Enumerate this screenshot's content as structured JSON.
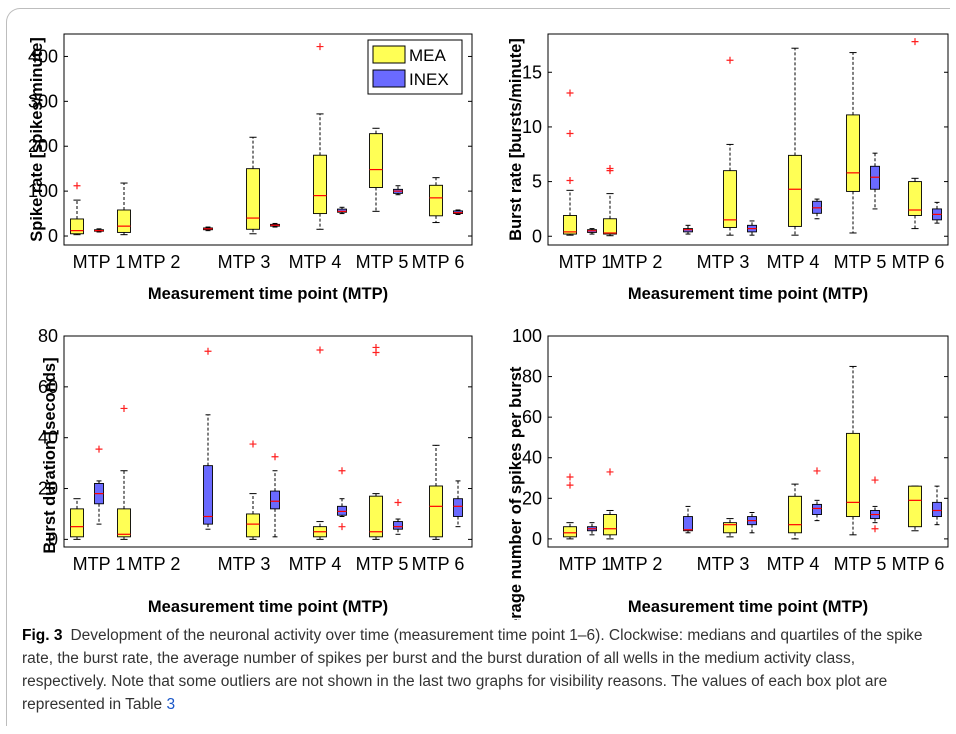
{
  "caption": {
    "label": "Fig. 3",
    "text": "Development of the neuronal activity over time (measurement time point 1–6). Clockwise: medians and quartiles of the spike rate, the burst rate, the average number of spikes per burst and the burst duration of all wells in the medium activity class, respectively. Note that some outliers are not shown in the last two graphs for visibility reasons. The values of each box plot are represented in Table",
    "table_ref": "3"
  },
  "colors": {
    "MEA": "#ffff55",
    "INEX": "#6a6aff",
    "outlier": "#ff2020",
    "median": "#ff0000"
  },
  "chart_data": [
    {
      "type": "box",
      "ylabel": "Spike rate [spikes/minute]",
      "xlabel": "Measurement time point (MTP)",
      "categories": [
        "MTP 1",
        "MTP 2",
        "MTP 3",
        "MTP 4",
        "MTP 5",
        "MTP 6"
      ],
      "tick_labels": [
        "MTP 1",
        "MTP 2",
        "MTP 3",
        "MTP 4",
        "MTP 5",
        "MTP 6"
      ],
      "ylim": [
        -20,
        450
      ],
      "yticks": [
        0,
        100,
        200,
        300,
        400
      ],
      "legend": {
        "position": "top-right",
        "entries": [
          "MEA",
          "INEX"
        ]
      },
      "series": [
        {
          "name": "MEA",
          "boxes": [
            {
              "whislo": 3,
              "q1": 5,
              "med": 12,
              "q3": 38,
              "whishi": 80,
              "fliers": [
                112
              ]
            },
            {
              "whislo": 3,
              "q1": 8,
              "med": 22,
              "q3": 58,
              "whishi": 118,
              "fliers": []
            },
            null,
            {
              "whislo": 5,
              "q1": 15,
              "med": 40,
              "q3": 150,
              "whishi": 220,
              "fliers": []
            },
            {
              "whislo": 15,
              "q1": 50,
              "med": 90,
              "q3": 180,
              "whishi": 272,
              "fliers": [
                422
              ]
            },
            {
              "whislo": 55,
              "q1": 108,
              "med": 148,
              "q3": 228,
              "whishi": 240,
              "fliers": []
            }
          ]
        },
        {
          "name": "INEX",
          "boxes": [
            {
              "whislo": 9,
              "q1": 11,
              "med": 12,
              "q3": 14,
              "whishi": 16,
              "fliers": []
            },
            null,
            {
              "whislo": 12,
              "q1": 14,
              "med": 16,
              "q3": 18,
              "whishi": 20,
              "fliers": []
            },
            {
              "whislo": 20,
              "q1": 22,
              "med": 24,
              "q3": 26,
              "whishi": 28,
              "fliers": []
            },
            {
              "whislo": 50,
              "q1": 53,
              "med": 55,
              "q3": 60,
              "whishi": 64,
              "fliers": []
            },
            {
              "whislo": 92,
              "q1": 95,
              "med": 100,
              "q3": 104,
              "whishi": 112,
              "fliers": []
            }
          ]
        }
      ],
      "extra_mea": {
        "whislo": 30,
        "q1": 45,
        "med": 85,
        "q3": 113,
        "whishi": 130,
        "fliers": []
      },
      "extra_inex": {
        "whislo": 48,
        "q1": 50,
        "med": 52,
        "q3": 56,
        "whishi": 58,
        "fliers": []
      }
    },
    {
      "type": "box",
      "ylabel": "Burst rate [bursts/minute]",
      "xlabel": "Measurement time point (MTP)",
      "ylim": [
        -0.8,
        18.5
      ],
      "yticks": [
        0,
        5,
        10,
        15
      ],
      "mea": [
        {
          "whislo": 0.1,
          "q1": 0.2,
          "med": 0.4,
          "q3": 1.9,
          "whishi": 4.2,
          "fliers": [
            5.1,
            9.4,
            13.1
          ]
        },
        {
          "whislo": 0.05,
          "q1": 0.2,
          "med": 0.3,
          "q3": 1.6,
          "whishi": 3.9,
          "fliers": [
            6.0,
            6.2
          ]
        },
        null,
        {
          "whislo": 0.1,
          "q1": 0.8,
          "med": 1.5,
          "q3": 6.0,
          "whishi": 8.4,
          "fliers": [
            16.1
          ]
        },
        {
          "whislo": 0.1,
          "q1": 0.9,
          "med": 4.3,
          "q3": 7.4,
          "whishi": 17.2,
          "fliers": []
        },
        {
          "whislo": 0.3,
          "q1": 4.1,
          "med": 5.8,
          "q3": 11.1,
          "whishi": 16.8,
          "fliers": []
        },
        {
          "whislo": 0.7,
          "q1": 1.9,
          "med": 2.4,
          "q3": 5.0,
          "whishi": 5.3,
          "fliers": [
            17.8
          ]
        }
      ],
      "inex": [
        {
          "whislo": 0.2,
          "q1": 0.35,
          "med": 0.5,
          "q3": 0.6,
          "whishi": 0.7,
          "fliers": []
        },
        null,
        {
          "whislo": 0.2,
          "q1": 0.4,
          "med": 0.6,
          "q3": 0.7,
          "whishi": 1.0,
          "fliers": []
        },
        {
          "whislo": 0.1,
          "q1": 0.4,
          "med": 0.7,
          "q3": 1.0,
          "whishi": 1.4,
          "fliers": []
        },
        {
          "whislo": 1.6,
          "q1": 2.1,
          "med": 2.6,
          "q3": 3.2,
          "whishi": 3.4,
          "fliers": []
        },
        {
          "whislo": 2.5,
          "q1": 4.3,
          "med": 5.4,
          "q3": 6.4,
          "whishi": 7.6,
          "fliers": []
        },
        {
          "whislo": 1.2,
          "q1": 1.5,
          "med": 2.0,
          "q3": 2.5,
          "whishi": 3.1,
          "fliers": []
        }
      ]
    },
    {
      "type": "box",
      "ylabel": "Burst duration [seconds]",
      "xlabel": "Measurement time point (MTP)",
      "ylim": [
        -3,
        80
      ],
      "yticks": [
        0,
        20,
        40,
        60,
        80
      ],
      "mea": [
        {
          "whislo": 0,
          "q1": 1,
          "med": 5,
          "q3": 12,
          "whishi": 16,
          "fliers": []
        },
        {
          "whislo": 0,
          "q1": 1,
          "med": 2,
          "q3": 12,
          "whishi": 27,
          "fliers": [
            51.5
          ]
        },
        null,
        {
          "whislo": 0,
          "q1": 1,
          "med": 6,
          "q3": 10,
          "whishi": 18,
          "fliers": [
            37.5
          ]
        },
        {
          "whislo": 0,
          "q1": 1,
          "med": 3,
          "q3": 5,
          "whishi": 7,
          "fliers": [
            74.5
          ]
        },
        {
          "whislo": 0,
          "q1": 1,
          "med": 3,
          "q3": 17,
          "whishi": 18,
          "fliers": [
            73.5,
            75.5
          ]
        },
        {
          "whislo": 0,
          "q1": 1,
          "med": 13,
          "q3": 21,
          "whishi": 37,
          "fliers": []
        }
      ],
      "inex": [
        {
          "whislo": 6,
          "q1": 14,
          "med": 18,
          "q3": 22,
          "whishi": 23,
          "fliers": [
            35.5
          ]
        },
        null,
        {
          "whislo": 4,
          "q1": 6,
          "med": 9,
          "q3": 29,
          "whishi": 49,
          "fliers": [
            74
          ]
        },
        {
          "whislo": 1,
          "q1": 12,
          "med": 15,
          "q3": 19,
          "whishi": 27,
          "fliers": [
            32.5
          ]
        },
        {
          "whislo": 9,
          "q1": 9.5,
          "med": 11,
          "q3": 13,
          "whishi": 16,
          "fliers": [
            5,
            27
          ]
        },
        {
          "whislo": 2,
          "q1": 4,
          "med": 5,
          "q3": 7,
          "whishi": 8,
          "fliers": [
            14.5
          ]
        },
        {
          "whislo": 5,
          "q1": 9,
          "med": 13,
          "q3": 16,
          "whishi": 23,
          "fliers": []
        }
      ]
    },
    {
      "type": "box",
      "ylabel": "Average number of spikes per burst",
      "xlabel": "Measurement time point (MTP)",
      "ylim": [
        -4,
        100
      ],
      "yticks": [
        0,
        20,
        40,
        60,
        80,
        100
      ],
      "mea": [
        {
          "whislo": 0,
          "q1": 1,
          "med": 3,
          "q3": 6,
          "whishi": 8,
          "fliers": [
            26.5,
            30.5
          ]
        },
        {
          "whislo": 0,
          "q1": 2,
          "med": 5,
          "q3": 12,
          "whishi": 14,
          "fliers": [
            33
          ]
        },
        null,
        {
          "whislo": 1,
          "q1": 3,
          "med": 7,
          "q3": 8,
          "whishi": 10,
          "fliers": []
        },
        {
          "whislo": 0,
          "q1": 3,
          "med": 7,
          "q3": 21,
          "whishi": 27,
          "fliers": []
        },
        {
          "whislo": 2,
          "q1": 11,
          "med": 18,
          "q3": 52,
          "whishi": 85,
          "fliers": []
        },
        {
          "whislo": 4,
          "q1": 6,
          "med": 19,
          "q3": 26,
          "whishi": 26,
          "fliers": []
        }
      ],
      "inex": [
        {
          "whislo": 2,
          "q1": 4,
          "med": 5,
          "q3": 6,
          "whishi": 8,
          "fliers": []
        },
        null,
        {
          "whislo": 3,
          "q1": 4,
          "med": 4.5,
          "q3": 11,
          "whishi": 16,
          "fliers": []
        },
        {
          "whislo": 3,
          "q1": 7,
          "med": 9,
          "q3": 11,
          "whishi": 13,
          "fliers": []
        },
        {
          "whislo": 9,
          "q1": 12,
          "med": 15,
          "q3": 17,
          "whishi": 19,
          "fliers": [
            33.5
          ]
        },
        {
          "whislo": 8,
          "q1": 10,
          "med": 12,
          "q3": 14,
          "whishi": 16,
          "fliers": [
            5,
            29
          ]
        },
        {
          "whislo": 7,
          "q1": 11,
          "med": 14,
          "q3": 18,
          "whishi": 26,
          "fliers": []
        }
      ]
    }
  ]
}
